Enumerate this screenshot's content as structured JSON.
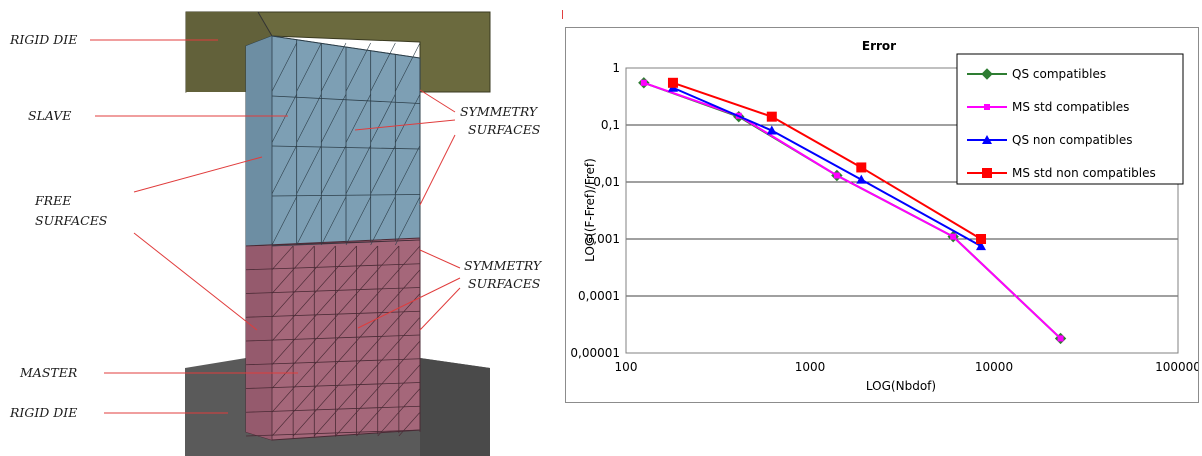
{
  "figure_labels": {
    "rigid_die_top": "RIGID DIE",
    "slave": "SLAVE",
    "free_surfaces_1": "FREE",
    "free_surfaces_2": "SURFACES",
    "symmetry_top_1": "SYMMETRY",
    "symmetry_top_2": "SURFACES",
    "symmetry_bottom_1": "SYMMETRY",
    "symmetry_bottom_2": "SURFACES",
    "master": "MASTER",
    "rigid_die_bottom": "RIGID DIE"
  },
  "colors": {
    "die_top": "#6b6a3e",
    "die_bottom": "#5a5a5a",
    "slave": "#7d9fb4",
    "master": "#a5677a",
    "callout": "#e03c3c"
  },
  "chart_data": {
    "type": "line",
    "title": "Error",
    "xlabel": "LOG(Nbdof)",
    "ylabel": "LOG((F-Fref)/Fref)",
    "xscale": "log",
    "yscale": "log",
    "xlim": [
      100,
      100000
    ],
    "ylim": [
      1e-05,
      1
    ],
    "x_ticks": [
      "100",
      "1000",
      "10000",
      "100000"
    ],
    "y_ticks": [
      "1",
      "0,1",
      "0,01",
      "0,001",
      "0,0001",
      "0,00001"
    ],
    "grid": "horizontal",
    "legend_position": "top-right",
    "series": [
      {
        "name": "QS compatibles",
        "color": "#2e7d32",
        "marker": "diamond",
        "x": [
          125,
          410,
          1400,
          6000,
          23000
        ],
        "y": [
          0.55,
          0.14,
          0.013,
          0.0011,
          1.8e-05
        ]
      },
      {
        "name": "MS std compatibles",
        "color": "#ff00ff",
        "marker": "square-small",
        "x": [
          125,
          410,
          1400,
          6000,
          23000
        ],
        "y": [
          0.55,
          0.145,
          0.013,
          0.0011,
          1.8e-05
        ]
      },
      {
        "name": "QS non compatibles",
        "color": "#0000ff",
        "marker": "triangle",
        "x": [
          180,
          620,
          1900,
          8500
        ],
        "y": [
          0.45,
          0.08,
          0.011,
          0.00075
        ]
      },
      {
        "name": "MS std non compatibles",
        "color": "#ff0000",
        "marker": "square",
        "x": [
          180,
          620,
          1900,
          8500
        ],
        "y": [
          0.55,
          0.14,
          0.018,
          0.001
        ]
      }
    ]
  }
}
